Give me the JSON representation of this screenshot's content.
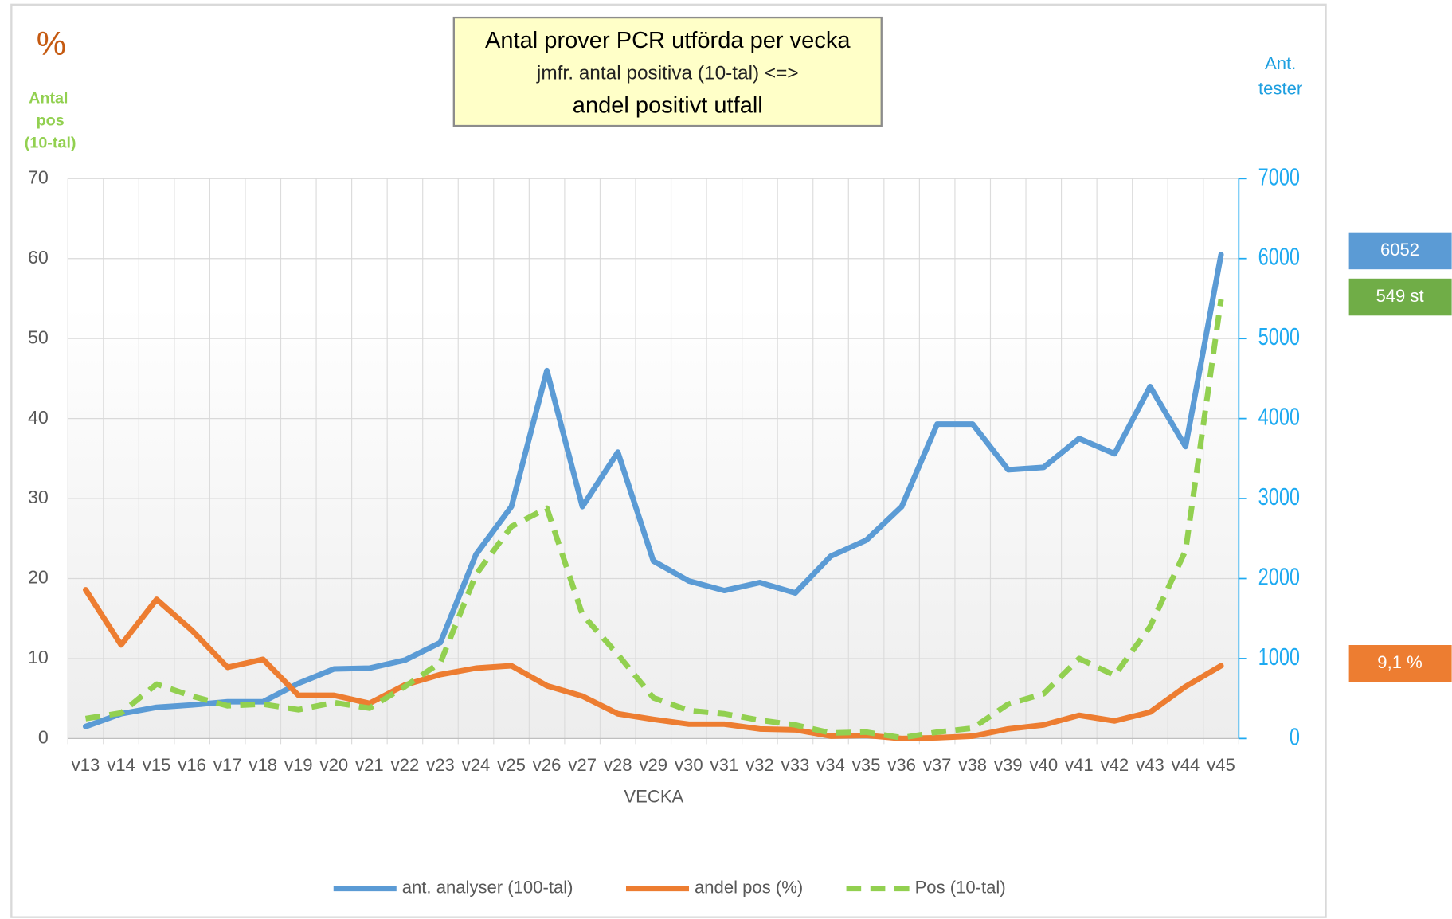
{
  "chart_data": {
    "type": "line",
    "title": [
      "Antal prover PCR utförda per vecka",
      "jmfr. antal positiva (10-tal) <=>",
      "andel positivt utfall"
    ],
    "y_axis_label": "%",
    "y_axis_sublabel": [
      "Antal",
      "pos",
      "(10-tal)"
    ],
    "y2_axis_label": [
      "Ant.",
      "tester"
    ],
    "x_axis_label": "VECKA",
    "categories": [
      "v13",
      "v14",
      "v15",
      "v16",
      "v17",
      "v18",
      "v19",
      "v20",
      "v21",
      "v22",
      "v23",
      "v24",
      "v25",
      "v26",
      "v27",
      "v28",
      "v29",
      "v30",
      "v31",
      "v32",
      "v33",
      "v34",
      "v35",
      "v36",
      "v37",
      "v38",
      "v39",
      "v40",
      "v41",
      "v42",
      "v43",
      "v44",
      "v45"
    ],
    "series": [
      {
        "name": "ant. analyser (100-tal)",
        "color": "#5b9bd5",
        "dash": false,
        "values": [
          1.5,
          3.1,
          3.9,
          4.2,
          4.6,
          4.6,
          6.9,
          8.7,
          8.8,
          9.8,
          12,
          23,
          29,
          46,
          29,
          35.8,
          22.2,
          19.7,
          18.5,
          19.5,
          18.2,
          22.8,
          24.8,
          29,
          39.3,
          39.3,
          33.6,
          33.9,
          37.5,
          35.6,
          44,
          36.5,
          60.5
        ]
      },
      {
        "name": "andel pos (%)",
        "color": "#ed7d31",
        "dash": false,
        "values": [
          18.6,
          11.7,
          17.4,
          13.5,
          8.9,
          9.9,
          5.4,
          5.4,
          4.4,
          6.7,
          8,
          8.8,
          9.1,
          6.6,
          5.3,
          3.1,
          2.4,
          1.8,
          1.8,
          1.2,
          1.1,
          0.3,
          0.4,
          0,
          0.1,
          0.3,
          1.2,
          1.7,
          2.9,
          2.2,
          3.3,
          6.5,
          9.1
        ]
      },
      {
        "name": "Pos (10-tal)",
        "color": "#92d050",
        "dash": true,
        "values": [
          2.5,
          3.2,
          6.8,
          5.3,
          4.1,
          4.3,
          3.6,
          4.5,
          3.8,
          6.5,
          9.5,
          20.5,
          26.5,
          28.8,
          15.5,
          10.5,
          5.1,
          3.5,
          3.1,
          2.3,
          1.7,
          0.7,
          0.8,
          0.1,
          0.8,
          1.3,
          4.3,
          5.6,
          10,
          7.9,
          14,
          23.5,
          54.9
        ]
      }
    ],
    "ylim": [
      0,
      70
    ],
    "yticks": [
      0,
      10,
      20,
      30,
      40,
      50,
      60,
      70
    ],
    "y2lim": [
      0,
      7000
    ],
    "y2ticks": [
      0,
      1000,
      2000,
      3000,
      4000,
      5000,
      6000,
      7000
    ],
    "grid": true,
    "legend": "bottom",
    "annotations": [
      {
        "text": "6052",
        "color": "#5b9bd5"
      },
      {
        "text": "549 st",
        "color": "#70ad47"
      },
      {
        "text": "9,1 %",
        "color": "#ed7d31"
      }
    ]
  }
}
